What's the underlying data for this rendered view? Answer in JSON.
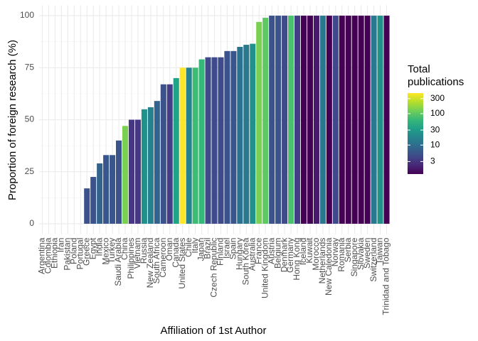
{
  "chart_data": {
    "type": "bar",
    "x_label": "Affiliation of 1st Author",
    "y_label": "Proportion of foreign research (%)",
    "categories": [
      "Argentina",
      "Colombia",
      "Ethiopia",
      "Iran",
      "Pakistan",
      "Poland",
      "Portugal",
      "Greece",
      "Egypt",
      "India",
      "Mexico",
      "Turkey",
      "Saudi Arabia",
      "China",
      "Philippines",
      "Vietnam",
      "Russia",
      "New Zealand",
      "South Africa",
      "Cameroon",
      "Oman",
      "Canada",
      "United States",
      "Chile",
      "Italy",
      "Japan",
      "Brazil",
      "Czech Republic",
      "Finland",
      "Israel",
      "Spain",
      "Hungary",
      "South Korea",
      "Australia",
      "France",
      "United Kingdom",
      "Austria",
      "Belgium",
      "Denmark",
      "Germany",
      "Hong Kong",
      "Iceland",
      "Kuwait",
      "Morocco",
      "Netherlands",
      "New Caledonia",
      "Norway",
      "Romania",
      "Serbia",
      "Singapore",
      "Slovakia",
      "Sweden",
      "Switzerland",
      "Taiwan",
      "Trinidad and Tobago"
    ],
    "values": [
      0,
      0,
      0,
      0,
      0,
      0,
      0,
      17,
      22.5,
      29,
      33,
      33,
      40,
      47,
      50,
      50,
      55,
      56,
      59,
      67,
      67,
      70,
      75,
      75,
      75,
      79,
      80,
      80,
      80,
      83,
      83,
      85,
      86,
      86.5,
      97,
      99,
      100,
      100,
      100,
      100,
      100,
      100,
      100,
      100,
      100,
      100,
      100,
      100,
      100,
      100,
      100,
      100,
      100,
      100,
      100
    ],
    "colors": [
      "#3e4a89",
      "#3e4a89",
      "#3e4a89",
      "#3e4a89",
      "#3e4a89",
      "#3e4a89",
      "#3e4a89",
      "#3b528b",
      "#3b528b",
      "#33638d",
      "#39568c",
      "#39568c",
      "#3b528b",
      "#7ad151",
      "#453781",
      "#453781",
      "#21918c",
      "#27808e",
      "#33638d",
      "#3b528b",
      "#433e85",
      "#20a386",
      "#fde725",
      "#26828e",
      "#3dbc74",
      "#35b779",
      "#3e4a89",
      "#3e4a89",
      "#3e4a89",
      "#3b528b",
      "#39568c",
      "#2c728e",
      "#2a788e",
      "#21918c",
      "#7ad151",
      "#5ec962",
      "#3b528b",
      "#3b528b",
      "#3e4a89",
      "#4ac16d",
      "#433e85",
      "#440154",
      "#440154",
      "#481a6c",
      "#2a788e",
      "#440154",
      "#3e4a89",
      "#440154",
      "#440154",
      "#440154",
      "#440154",
      "#440154",
      "#2a788e",
      "#21918c",
      "#440154"
    ],
    "ylim": [
      -5,
      105
    ],
    "yticks": [
      0,
      25,
      50,
      75,
      100
    ],
    "grid": true,
    "legend": {
      "title_lines": [
        "Total",
        "publications"
      ],
      "log_scale": true,
      "lim": [
        1.2,
        450
      ],
      "ticks": [
        3,
        10,
        30,
        100,
        300
      ],
      "colors": [
        "#440154",
        "#482878",
        "#3e4a89",
        "#31688e",
        "#26828e",
        "#1f9e89",
        "#35b779",
        "#6ece58",
        "#b5de2b",
        "#fde725"
      ]
    }
  }
}
